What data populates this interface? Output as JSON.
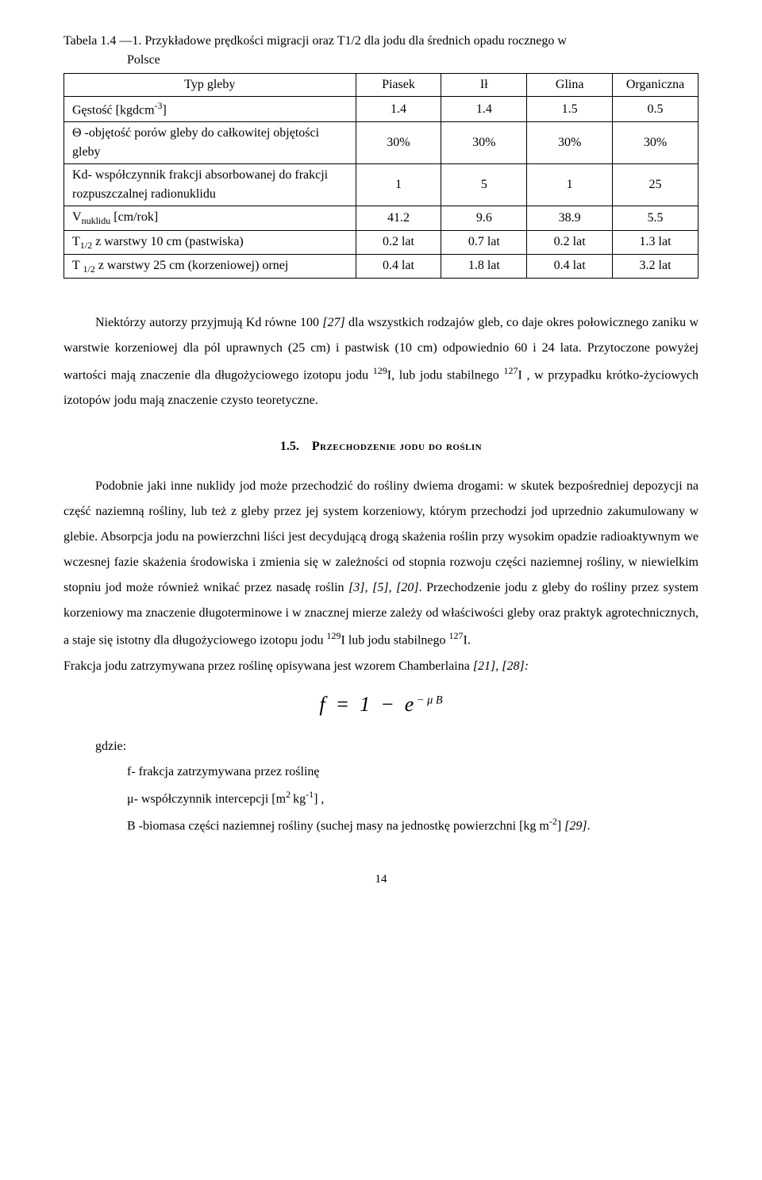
{
  "table": {
    "caption_line1": "Tabela 1.4 —1. Przykładowe prędkości migracji  oraz T1/2 dla jodu dla średnich opadu rocznego w",
    "caption_line2": "Polsce",
    "header": {
      "col0": "Typ gleby",
      "col1": "Piasek",
      "col2": "Ił",
      "col3": "Glina",
      "col4": "Organiczna"
    },
    "rows": [
      {
        "label_html": "Gęstość [kgdcm<span class=\"sup\">-3</span>]",
        "c1": "1.4",
        "c2": "1.4",
        "c3": "1.5",
        "c4": "0.5"
      },
      {
        "label_html": "Θ -objętość porów gleby do całkowitej objętości gleby",
        "c1": "30%",
        "c2": "30%",
        "c3": "30%",
        "c4": "30%"
      },
      {
        "label_html": "Kd- współczynnik frakcji absorbowanej do frakcji rozpuszczalnej radionuklidu",
        "c1": "1",
        "c2": "5",
        "c3": "1",
        "c4": "25"
      },
      {
        "label_html": "V<span class=\"sub\">nuklidu</span> [cm/rok]",
        "c1": "41.2",
        "c2": "9.6",
        "c3": "38.9",
        "c4": "5.5"
      },
      {
        "label_html": "T<span class=\"sub\">1/2</span> z warstwy 10 cm (pastwiska)",
        "c1": "0.2  lat",
        "c2": "0.7 lat",
        "c3": "0.2 lat",
        "c4": "1.3 lat"
      },
      {
        "label_html": "T <span class=\"sub\">1/2</span> z warstwy 25 cm (korzeniowej) ornej",
        "c1": "0.4 lat",
        "c2": "1.8 lat",
        "c3": "0.4 lat",
        "c4": "3.2 lat"
      }
    ]
  },
  "para1_html": "Niektórzy autorzy przyjmują Kd równe 100 <i>[27]</i> dla wszystkich rodzajów gleb, co daje okres połowicznego zaniku w warstwie korzeniowej dla pól uprawnych (25 cm) i pastwisk (10 cm) odpowiednio 60 i 24 lata. Przytoczone powyżej wartości mają znaczenie dla długożyciowego izotopu jodu <span class=\"sup\">129</span>I, lub jodu stabilnego <span class=\"sup\">127</span>I , w przypadku krótko-życiowych izotopów jodu mają znaczenie czysto teoretyczne.",
  "section": {
    "num": "1.5.",
    "title": "Przechodzenie jodu do roślin"
  },
  "para2_html": "Podobnie jaki inne nuklidy jod może przechodzić do rośliny dwiema drogami: w skutek bezpośredniej depozycji na część naziemną rośliny, lub też z gleby przez jej system korzeniowy, którym przechodzi jod uprzednio zakumulowany w glebie. Absorpcja jodu na powierzchni liści jest decydującą drogą skażenia roślin przy wysokim opadzie radioaktywnym we wczesnej fazie skażenia środowiska i zmienia się w zależności od stopnia rozwoju części naziemnej rośliny, w niewielkim stopniu jod może również wnikać przez nasadę roślin <i>[3], [5], [20]</i>. Przechodzenie jodu z gleby do rośliny przez system korzeniowy ma znaczenie długoterminowe  i w znacznej mierze zależy od właściwości gleby oraz praktyk agrotechnicznych, a staje się istotny dla długożyciowego izotopu jodu <span class=\"sup\">129</span>I lub jodu stabilnego <span class=\"sup\">127</span>I.",
  "para3_html": "Frakcja jodu zatrzymywana przez roślinę opisywana jest wzorem Chamberlaina  <i>[21], [28]:</i>",
  "formula_html": "f &nbsp;=&nbsp; 1 &nbsp;−&nbsp; e<span class=\"muB\">&nbsp;−&nbsp;μ B</span>",
  "gdzie": "gdzie:",
  "def1": "f- frakcja zatrzymywana przez roślinę",
  "def2_html": "μ- współczynnik intercepcji [m<span class=\"sup\">2 </span>kg<span class=\"sup\">-1</span>] ,",
  "def3_html": "B -biomasa części naziemnej rośliny (suchej masy na jednostkę powierzchni [kg m<span class=\"sup\">-2</span>] <i>[29]</i>.",
  "page_number": "14"
}
